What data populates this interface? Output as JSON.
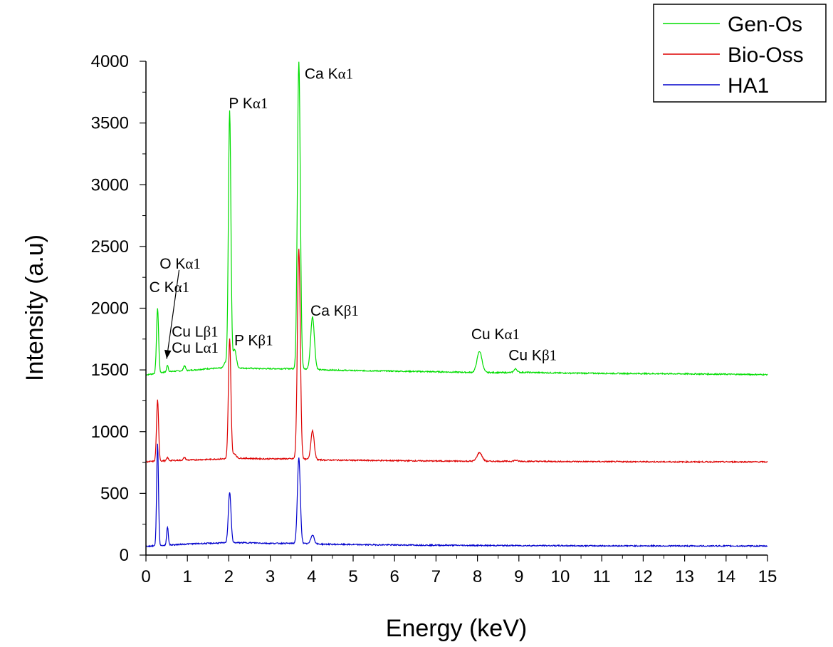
{
  "chart_data": {
    "type": "line",
    "title": "",
    "xlabel": "Energy (keV)",
    "ylabel": "Intensity (a.u)",
    "xlim": [
      0,
      15
    ],
    "ylim": [
      0,
      4000
    ],
    "x_ticks": [
      0,
      1,
      2,
      3,
      4,
      5,
      6,
      7,
      8,
      9,
      10,
      11,
      12,
      13,
      14,
      15
    ],
    "y_ticks": [
      0,
      500,
      1000,
      1500,
      2000,
      2500,
      3000,
      3500,
      4000
    ],
    "grid": false,
    "legend": {
      "position": "top-right",
      "entries": [
        "Gen-Os",
        "Bio-Oss",
        "HA1"
      ]
    },
    "series": [
      {
        "name": "Gen-Os",
        "color": "#00dd00",
        "baseline": [
          [
            0,
            1460
          ],
          [
            0.2,
            1470
          ],
          [
            0.4,
            1480
          ],
          [
            0.7,
            1490
          ],
          [
            1.0,
            1495
          ],
          [
            1.5,
            1510
          ],
          [
            1.9,
            1515
          ],
          [
            2.3,
            1515
          ],
          [
            2.8,
            1510
          ],
          [
            3.4,
            1510
          ],
          [
            3.6,
            1510
          ],
          [
            4.3,
            1500
          ],
          [
            5,
            1495
          ],
          [
            6,
            1490
          ],
          [
            7,
            1485
          ],
          [
            7.8,
            1480
          ],
          [
            8.6,
            1478
          ],
          [
            9.2,
            1480
          ],
          [
            10,
            1475
          ],
          [
            11,
            1472
          ],
          [
            12,
            1470
          ],
          [
            13,
            1468
          ],
          [
            14,
            1465
          ],
          [
            15,
            1462
          ]
        ],
        "peaks": [
          {
            "x": 0.28,
            "y": 2000,
            "w": 0.025
          },
          {
            "x": 0.52,
            "y": 1540,
            "w": 0.02
          },
          {
            "x": 0.93,
            "y": 1535,
            "w": 0.025
          },
          {
            "x": 1.92,
            "y": 1560,
            "w": 0.04
          },
          {
            "x": 2.02,
            "y": 3600,
            "w": 0.03
          },
          {
            "x": 2.14,
            "y": 1665,
            "w": 0.04
          },
          {
            "x": 3.69,
            "y": 4000,
            "w": 0.035
          },
          {
            "x": 4.02,
            "y": 1930,
            "w": 0.045
          },
          {
            "x": 8.05,
            "y": 1650,
            "w": 0.06
          },
          {
            "x": 8.92,
            "y": 1508,
            "w": 0.04
          }
        ]
      },
      {
        "name": "Bio-Oss",
        "color": "#dd0000",
        "baseline": [
          [
            0,
            755
          ],
          [
            0.2,
            760
          ],
          [
            0.5,
            765
          ],
          [
            1.0,
            770
          ],
          [
            1.5,
            775
          ],
          [
            1.9,
            780
          ],
          [
            2.3,
            785
          ],
          [
            2.8,
            780
          ],
          [
            3.4,
            780
          ],
          [
            3.6,
            780
          ],
          [
            4.3,
            770
          ],
          [
            5,
            768
          ],
          [
            6,
            765
          ],
          [
            7,
            762
          ],
          [
            8,
            760
          ],
          [
            9,
            760
          ],
          [
            10,
            758
          ],
          [
            11,
            757
          ],
          [
            12,
            756
          ],
          [
            13,
            755
          ],
          [
            14,
            755
          ],
          [
            15,
            755
          ]
        ],
        "peaks": [
          {
            "x": 0.28,
            "y": 1255,
            "w": 0.025
          },
          {
            "x": 0.52,
            "y": 790,
            "w": 0.02
          },
          {
            "x": 0.93,
            "y": 790,
            "w": 0.025
          },
          {
            "x": 2.02,
            "y": 1750,
            "w": 0.03
          },
          {
            "x": 2.14,
            "y": 820,
            "w": 0.04
          },
          {
            "x": 3.69,
            "y": 2480,
            "w": 0.035
          },
          {
            "x": 4.02,
            "y": 1010,
            "w": 0.04
          },
          {
            "x": 8.05,
            "y": 830,
            "w": 0.06
          },
          {
            "x": 8.92,
            "y": 768,
            "w": 0.04
          }
        ]
      },
      {
        "name": "HA1",
        "color": "#0000cc",
        "baseline": [
          [
            0,
            70
          ],
          [
            0.2,
            75
          ],
          [
            0.5,
            80
          ],
          [
            1.0,
            90
          ],
          [
            1.5,
            95
          ],
          [
            2.0,
            100
          ],
          [
            2.5,
            100
          ],
          [
            3.0,
            95
          ],
          [
            3.6,
            95
          ],
          [
            4.3,
            88
          ],
          [
            5,
            85
          ],
          [
            6,
            82
          ],
          [
            7,
            80
          ],
          [
            8,
            78
          ],
          [
            9,
            77
          ],
          [
            10,
            76
          ],
          [
            11,
            75
          ],
          [
            12,
            75
          ],
          [
            13,
            74
          ],
          [
            14,
            74
          ],
          [
            15,
            73
          ]
        ],
        "peaks": [
          {
            "x": 0.28,
            "y": 905,
            "w": 0.022
          },
          {
            "x": 0.52,
            "y": 230,
            "w": 0.02
          },
          {
            "x": 2.02,
            "y": 510,
            "w": 0.032
          },
          {
            "x": 3.69,
            "y": 785,
            "w": 0.035
          },
          {
            "x": 4.02,
            "y": 165,
            "w": 0.04
          }
        ]
      }
    ],
    "annotations": [
      {
        "text": "Ca K",
        "greek": "α1",
        "x": 3.83,
        "y": 3860
      },
      {
        "text": "P K",
        "greek": "α1",
        "x": 2.0,
        "y": 3620
      },
      {
        "text": "O K",
        "greek": "α1",
        "x": 0.33,
        "y": 2320
      },
      {
        "text": "C K",
        "greek": "α1",
        "x": 0.08,
        "y": 2130
      },
      {
        "text": "Ca K",
        "greek": "β1",
        "x": 3.97,
        "y": 1940
      },
      {
        "text": "Cu L",
        "greek": "β1",
        "x": 0.62,
        "y": 1770
      },
      {
        "text": "Cu L",
        "greek": "α1",
        "x": 0.62,
        "y": 1640
      },
      {
        "text": "P K",
        "greek": "β1",
        "x": 2.13,
        "y": 1700
      },
      {
        "text": "Cu K",
        "greek": "α1",
        "x": 7.85,
        "y": 1750
      },
      {
        "text": "Cu K",
        "greek": "β1",
        "x": 8.75,
        "y": 1580
      }
    ],
    "arrow": {
      "from": [
        0.8,
        2310
      ],
      "to": [
        0.5,
        1590
      ]
    }
  }
}
